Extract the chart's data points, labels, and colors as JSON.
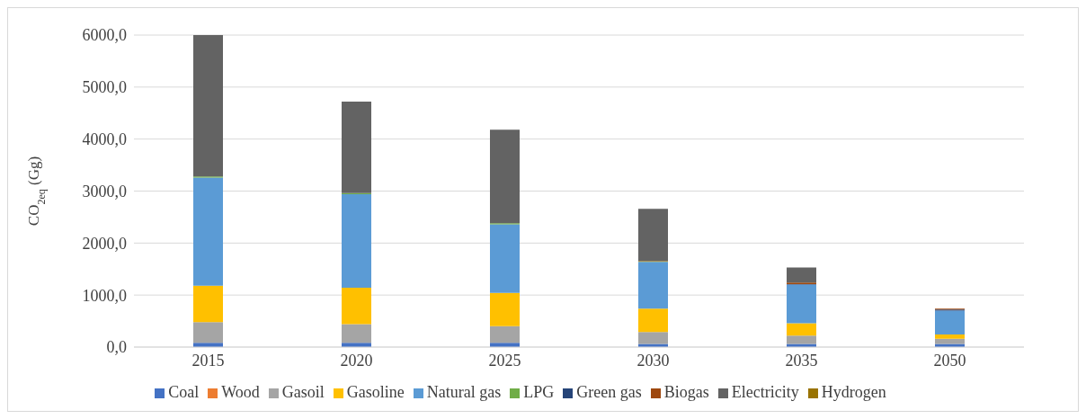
{
  "chart_data": {
    "type": "bar",
    "stacked": true,
    "ylabel": "CO$_{2eq}$ (Gg)",
    "categories": [
      "2015",
      "2020",
      "2025",
      "2030",
      "2035",
      "2050"
    ],
    "ylim": [
      0,
      6000
    ],
    "yticks": [
      {
        "value": 0,
        "label": "0,0"
      },
      {
        "value": 1000,
        "label": "1000,0"
      },
      {
        "value": 2000,
        "label": "2000,0"
      },
      {
        "value": 3000,
        "label": "3000,0"
      },
      {
        "value": 4000,
        "label": "4000,0"
      },
      {
        "value": 5000,
        "label": "5000,0"
      },
      {
        "value": 6000,
        "label": "6000,0"
      }
    ],
    "grid": "y",
    "legend": "bottom",
    "series": [
      {
        "name": "Coal",
        "color": "#4472c4",
        "values": [
          80,
          80,
          80,
          60,
          60,
          60
        ]
      },
      {
        "name": "Wood",
        "color": "#ed7d31",
        "values": [
          0,
          0,
          0,
          0,
          0,
          0
        ]
      },
      {
        "name": "Gasoil",
        "color": "#a5a5a5",
        "values": [
          400,
          360,
          320,
          230,
          160,
          100
        ]
      },
      {
        "name": "Gasoline",
        "color": "#ffc000",
        "values": [
          700,
          700,
          640,
          450,
          240,
          80
        ]
      },
      {
        "name": "Natural gas",
        "color": "#5b9bd5",
        "values": [
          2080,
          1800,
          1320,
          900,
          740,
          460
        ]
      },
      {
        "name": "LPG",
        "color": "#70ad47",
        "values": [
          20,
          20,
          20,
          10,
          0,
          0
        ]
      },
      {
        "name": "Green gas",
        "color": "#264478",
        "values": [
          0,
          0,
          0,
          0,
          10,
          20
        ]
      },
      {
        "name": "Biogas",
        "color": "#9e480e",
        "values": [
          0,
          0,
          0,
          10,
          30,
          20
        ]
      },
      {
        "name": "Electricity",
        "color": "#636363",
        "values": [
          2720,
          1760,
          1800,
          1000,
          290,
          0
        ]
      },
      {
        "name": "Hydrogen",
        "color": "#997300",
        "values": [
          null,
          null,
          null,
          null,
          null,
          null
        ]
      }
    ]
  }
}
